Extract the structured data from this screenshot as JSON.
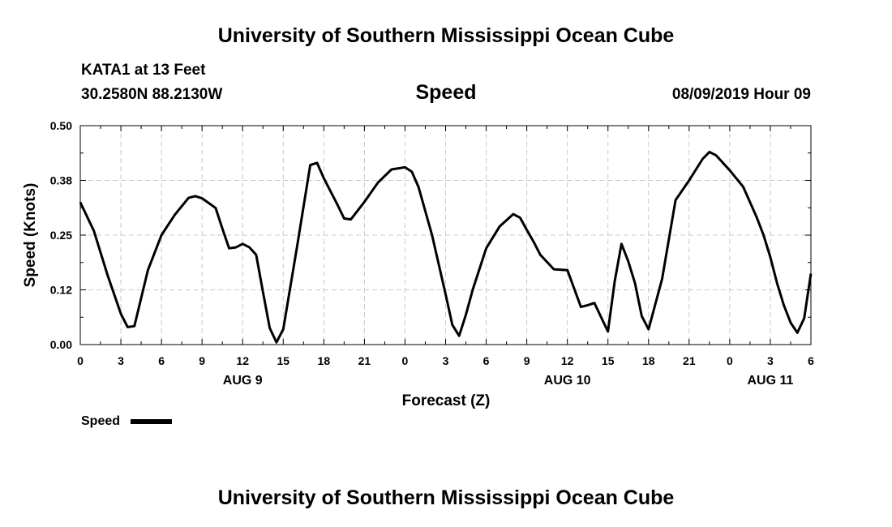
{
  "header": {
    "title": "University of Southern Mississippi Ocean Cube",
    "station": "KATA1 at 13 Feet",
    "location": "30.2580N 88.2130W",
    "variable": "Speed",
    "datetime": "08/09/2019 Hour 09"
  },
  "footer": {
    "title": "University of Southern Mississippi Ocean Cube"
  },
  "legend": {
    "label": "Speed",
    "color": "#000000"
  },
  "chart_data": {
    "type": "line",
    "xlabel": "Forecast (Z)",
    "ylabel": "Speed (Knots)",
    "xlim": [
      0,
      54
    ],
    "ylim": [
      0,
      0.5
    ],
    "y_ticks": [
      0.0,
      0.125,
      0.25,
      0.375,
      0.5
    ],
    "y_tick_labels": [
      "0.00",
      "0.12",
      "0.25",
      "0.38",
      "0.50"
    ],
    "x_ticks": [
      0,
      3,
      6,
      9,
      12,
      15,
      18,
      21,
      24,
      27,
      30,
      33,
      36,
      39,
      42,
      45,
      48,
      51,
      54
    ],
    "x_tick_labels": [
      "0",
      "3",
      "6",
      "9",
      "12",
      "15",
      "18",
      "21",
      "0",
      "3",
      "6",
      "9",
      "12",
      "15",
      "18",
      "21",
      "0",
      "3",
      "6"
    ],
    "day_labels": [
      {
        "x": 12,
        "label": "AUG 9"
      },
      {
        "x": 36,
        "label": "AUG 10"
      },
      {
        "x": 51,
        "label": "AUG 11"
      }
    ],
    "grid": true,
    "legend_position": "bottom-left",
    "series": [
      {
        "name": "Speed",
        "color": "#000000",
        "x": [
          0,
          1,
          2,
          3,
          3.5,
          4,
          5,
          6,
          7,
          8,
          8.5,
          9,
          10,
          10.5,
          11,
          11.5,
          12,
          12.5,
          13,
          13.5,
          14,
          14.5,
          15,
          16,
          17,
          17.5,
          18,
          19,
          19.5,
          20,
          21,
          22,
          23,
          24,
          24.5,
          25,
          26,
          27,
          27.5,
          28,
          28.5,
          29,
          30,
          31,
          32,
          32.5,
          33,
          33.5,
          34,
          35,
          36,
          37,
          37.5,
          38,
          38.5,
          39,
          39.5,
          40,
          40.5,
          41,
          41.5,
          42,
          43,
          44,
          45,
          46,
          46.5,
          47,
          48,
          49,
          50,
          50.5,
          51,
          51.5,
          52,
          52.5,
          53,
          53.5,
          54
        ],
        "values": [
          0.325,
          0.26,
          0.16,
          0.07,
          0.04,
          0.042,
          0.17,
          0.25,
          0.297,
          0.335,
          0.339,
          0.334,
          0.312,
          0.265,
          0.22,
          0.222,
          0.23,
          0.222,
          0.205,
          0.12,
          0.038,
          0.005,
          0.035,
          0.22,
          0.41,
          0.415,
          0.38,
          0.32,
          0.288,
          0.286,
          0.326,
          0.37,
          0.4,
          0.405,
          0.395,
          0.36,
          0.25,
          0.115,
          0.045,
          0.02,
          0.068,
          0.125,
          0.22,
          0.27,
          0.298,
          0.29,
          0.262,
          0.235,
          0.205,
          0.172,
          0.17,
          0.086,
          0.09,
          0.095,
          0.062,
          0.03,
          0.145,
          0.23,
          0.19,
          0.14,
          0.065,
          0.035,
          0.15,
          0.33,
          0.375,
          0.424,
          0.44,
          0.432,
          0.398,
          0.36,
          0.29,
          0.25,
          0.2,
          0.14,
          0.09,
          0.05,
          0.027,
          0.06,
          0.162
        ]
      }
    ]
  }
}
